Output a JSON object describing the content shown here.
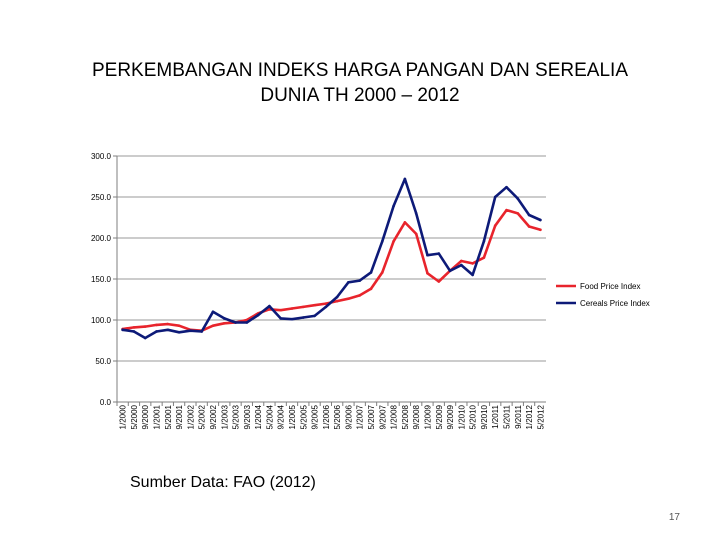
{
  "slide": {
    "title_line1": "PERKEMBANGAN INDEKS HARGA PANGAN DAN SEREALIA",
    "title_line2": "DUNIA  TH 2000 – 2012",
    "source": "Sumber Data: FAO (2012)",
    "page_number": "17"
  },
  "chart_data": {
    "type": "line",
    "title": "",
    "xlabel": "",
    "ylabel": "",
    "ylim": [
      0,
      300
    ],
    "yticks": [
      0,
      50,
      100,
      150,
      200,
      250,
      300
    ],
    "ytick_labels": [
      "0.0",
      "50.0",
      "100.0",
      "150.0",
      "200.0",
      "250.0",
      "300.0"
    ],
    "grid": "horizontal",
    "legend": "right",
    "x_tick_labels": [
      "1/2000",
      "5/2000",
      "9/2000",
      "1/2001",
      "5/2001",
      "9/2001",
      "1/2002",
      "5/2002",
      "9/2002",
      "1/2003",
      "5/2003",
      "9/2003",
      "1/2004",
      "5/2004",
      "9/2004",
      "1/2005",
      "5/2005",
      "9/2005",
      "1/2006",
      "5/2006",
      "9/2006",
      "1/2007",
      "5/2007",
      "9/2007",
      "1/2008",
      "5/2008",
      "9/2008",
      "1/2009",
      "5/2009",
      "9/2009",
      "1/2010",
      "5/2010",
      "9/2010",
      "1/2011",
      "5/2011",
      "9/2011",
      "1/2012",
      "5/2012"
    ],
    "x": [
      "1/2000",
      "5/2000",
      "9/2000",
      "1/2001",
      "5/2001",
      "9/2001",
      "1/2002",
      "5/2002",
      "9/2002",
      "1/2003",
      "5/2003",
      "9/2003",
      "1/2004",
      "5/2004",
      "9/2004",
      "1/2005",
      "5/2005",
      "9/2005",
      "1/2006",
      "5/2006",
      "9/2006",
      "1/2007",
      "5/2007",
      "9/2007",
      "1/2008",
      "5/2008",
      "9/2008",
      "1/2009",
      "5/2009",
      "9/2009",
      "1/2010",
      "5/2010",
      "9/2010",
      "1/2011",
      "5/2011",
      "9/2011",
      "1/2012",
      "5/2012"
    ],
    "series": [
      {
        "name": "Food Price Index",
        "color": "#e8242c",
        "values": [
          89,
          91,
          92,
          94,
          95,
          93,
          88,
          87,
          93,
          96,
          97,
          100,
          108,
          113,
          112,
          114,
          116,
          118,
          120,
          123,
          126,
          130,
          138,
          158,
          196,
          219,
          205,
          157,
          147,
          160,
          172,
          169,
          176,
          215,
          234,
          230,
          214,
          210
        ]
      },
      {
        "name": "Cereals Price Index",
        "color": "#0d1a78",
        "values": [
          88,
          86,
          78,
          86,
          88,
          85,
          87,
          86,
          110,
          102,
          97,
          97,
          106,
          117,
          102,
          101,
          103,
          105,
          116,
          128,
          146,
          148,
          158,
          196,
          239,
          272,
          230,
          179,
          181,
          160,
          167,
          155,
          196,
          250,
          262,
          248,
          228,
          222
        ]
      }
    ]
  }
}
